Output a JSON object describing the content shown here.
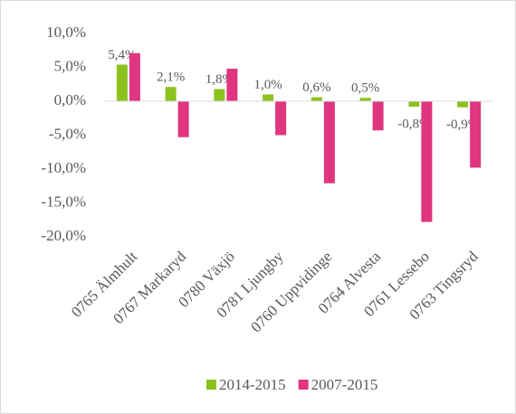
{
  "chart_data": {
    "type": "bar",
    "categories": [
      "0765 Älmhult",
      "0767 Markaryd",
      "0780 Växjö",
      "0781 Ljungby",
      "0760 Uppvidinge",
      "0764 Alvesta",
      "0761 Lessebo",
      "0763 Tingsryd"
    ],
    "series": [
      {
        "name": "2014-2015",
        "color": "#8cc21f",
        "values": [
          5.4,
          2.1,
          1.8,
          1.0,
          0.6,
          0.5,
          -0.8,
          -0.9
        ],
        "value_labels": [
          "5,4%",
          "2,1%",
          "1,8%",
          "1,0%",
          "0,6%",
          "0,5%",
          "-0,8%",
          "-0,9%"
        ]
      },
      {
        "name": "2007-2015",
        "color": "#e0357f",
        "values": [
          7.1,
          -5.3,
          4.8,
          -5.0,
          -12.1,
          -4.3,
          -17.8,
          -9.8
        ]
      }
    ],
    "ylim": [
      -20,
      10
    ],
    "yticks": [
      {
        "value": -20,
        "label": "-20,0%"
      },
      {
        "value": -15,
        "label": "-15,0%"
      },
      {
        "value": -10,
        "label": "-10,0%"
      },
      {
        "value": -5,
        "label": "-5,0%"
      },
      {
        "value": 0,
        "label": "0,0%"
      },
      {
        "value": 5,
        "label": "5,0%"
      },
      {
        "value": 10,
        "label": "10,0%"
      }
    ],
    "legend": "bottom"
  }
}
